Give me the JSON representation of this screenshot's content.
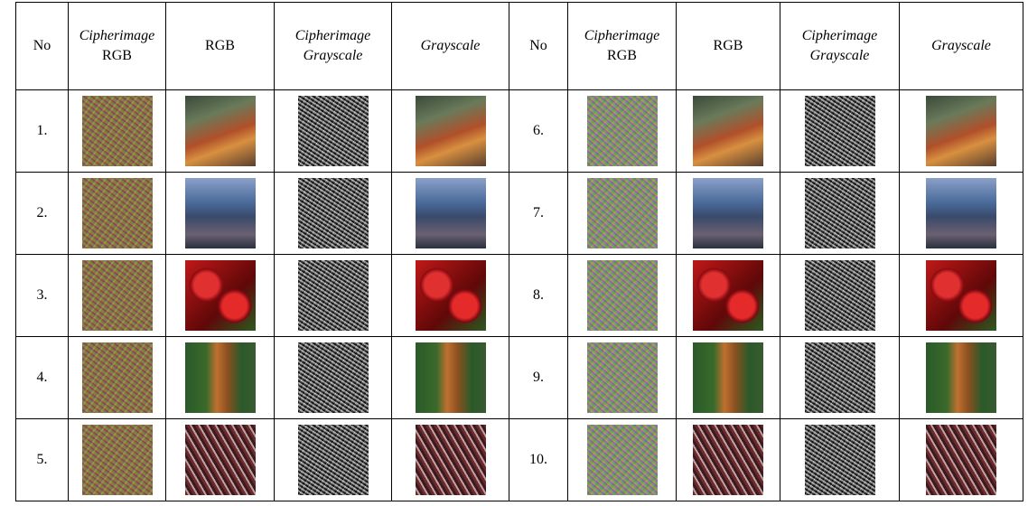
{
  "table": {
    "header": [
      [
        "No"
      ],
      [
        "Cipherimage",
        "RGB"
      ],
      [
        "RGB"
      ],
      [
        "Cipherimage",
        "Grayscale"
      ],
      [
        "Grayscale"
      ],
      [
        "No"
      ],
      [
        "Cipherimage",
        "RGB"
      ],
      [
        "RGB"
      ],
      [
        "Cipherimage",
        "Grayscale"
      ],
      [
        "Grayscale"
      ]
    ],
    "rows": [
      [
        "1.",
        "6."
      ],
      [
        "2.",
        "7."
      ],
      [
        "3.",
        "8."
      ],
      [
        "4.",
        "9."
      ],
      [
        "5.",
        "10."
      ]
    ]
  }
}
